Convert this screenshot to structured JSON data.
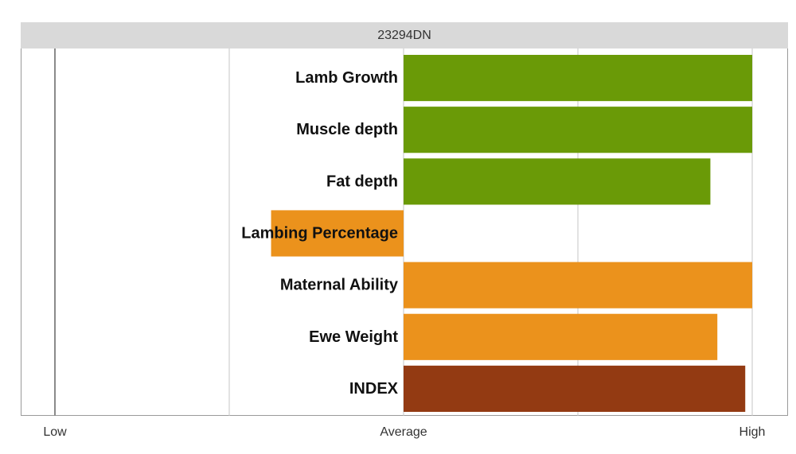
{
  "chart_data": {
    "type": "bar",
    "orientation": "horizontal",
    "title": "23294DN",
    "categories": [
      "Lamb Growth",
      "Muscle depth",
      "Fat depth",
      "Lambing Percentage",
      "Maternal Ability",
      "Ewe Weight",
      "INDEX"
    ],
    "values": [
      2.0,
      2.0,
      1.76,
      -0.76,
      2.0,
      1.8,
      1.96
    ],
    "colors": [
      "#6a9a07",
      "#6a9a07",
      "#6a9a07",
      "#eb921c",
      "#eb921c",
      "#eb921c",
      "#933a12"
    ],
    "xlim": [
      -2,
      2
    ],
    "xticks": [
      {
        "value": -2,
        "label": "Low"
      },
      {
        "value": 0,
        "label": "Average"
      },
      {
        "value": 2,
        "label": "High"
      }
    ],
    "grid_values": [
      -2,
      -1,
      0,
      1,
      2
    ],
    "grid": true,
    "legend": "none"
  }
}
